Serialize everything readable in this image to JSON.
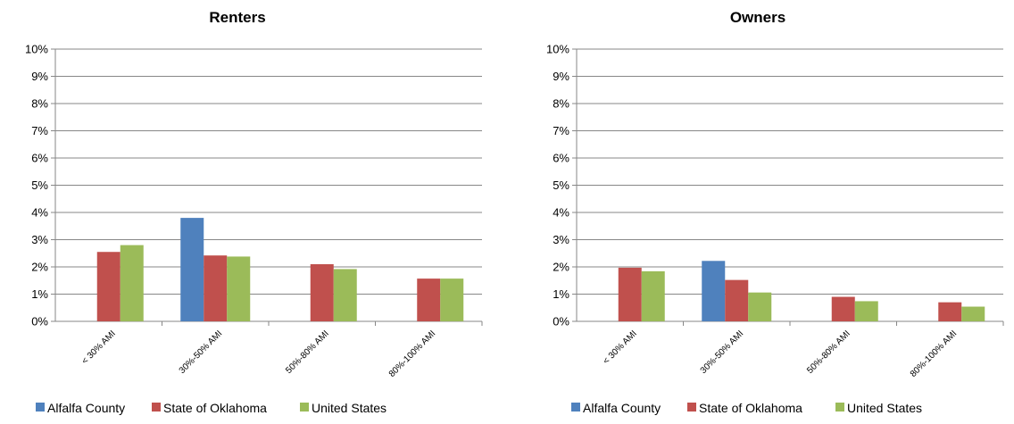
{
  "chart_data": [
    {
      "type": "bar",
      "title": "Renters",
      "categories": [
        "< 30% AMI",
        "30%-50% AMI",
        "50%-80% AMI",
        "80%-100% AMI"
      ],
      "series": [
        {
          "name": "Alfalfa County",
          "color": "#4F81BD",
          "values": [
            0,
            3.8,
            0,
            0
          ]
        },
        {
          "name": "State of Oklahoma",
          "color": "#C0504D",
          "values": [
            2.55,
            2.42,
            2.1,
            1.57
          ]
        },
        {
          "name": "United States",
          "color": "#9BBB59",
          "values": [
            2.8,
            2.38,
            1.92,
            1.57
          ]
        }
      ],
      "y_ticks": [
        "0%",
        "1%",
        "2%",
        "3%",
        "4%",
        "5%",
        "6%",
        "7%",
        "8%",
        "9%",
        "10%"
      ],
      "ylim": [
        0,
        10
      ],
      "grid": true,
      "legend": "bottom"
    },
    {
      "type": "bar",
      "title": "Owners",
      "categories": [
        "< 30% AMI",
        "30%-50% AMI",
        "50%-80% AMI",
        "80%-100% AMI"
      ],
      "series": [
        {
          "name": "Alfalfa County",
          "color": "#4F81BD",
          "values": [
            0,
            2.22,
            0,
            0
          ]
        },
        {
          "name": "State of Oklahoma",
          "color": "#C0504D",
          "values": [
            1.97,
            1.52,
            0.9,
            0.7
          ]
        },
        {
          "name": "United States",
          "color": "#9BBB59",
          "values": [
            1.84,
            1.06,
            0.74,
            0.54
          ]
        }
      ],
      "y_ticks": [
        "0%",
        "1%",
        "2%",
        "3%",
        "4%",
        "5%",
        "6%",
        "7%",
        "8%",
        "9%",
        "10%"
      ],
      "ylim": [
        0,
        10
      ],
      "grid": true,
      "legend": "bottom"
    }
  ]
}
